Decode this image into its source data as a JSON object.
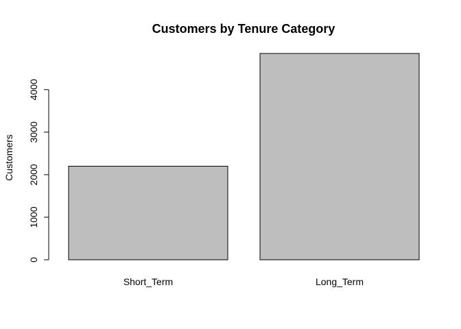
{
  "chart_data": {
    "type": "bar",
    "title": "Customers by Tenure Category",
    "xlabel": "",
    "ylabel": "Customers",
    "categories": [
      "Short_Term",
      "Long_Term"
    ],
    "values": [
      2200,
      4850
    ],
    "ylim": [
      0,
      4850
    ],
    "yticks": [
      0,
      1000,
      2000,
      3000,
      4000
    ],
    "ytick_labels": [
      "0",
      "1000",
      "2000",
      "3000",
      "4000"
    ],
    "bar_color": "#bebebe",
    "bar_border_color": "#000000",
    "grid": false,
    "legend": "none"
  }
}
